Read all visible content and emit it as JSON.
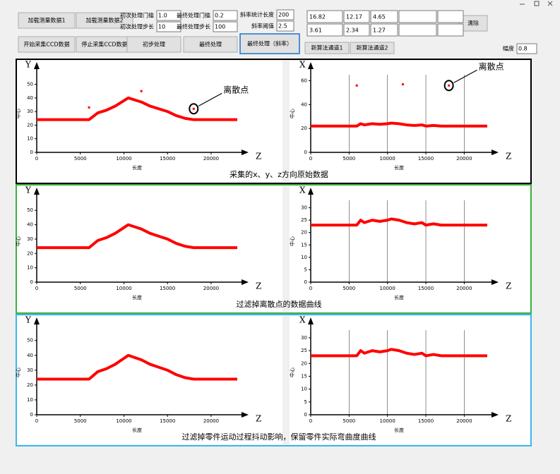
{
  "toolbar": {
    "buttons": [
      "加载测量数据1",
      "加载测量数据2",
      "开始采集CCD数据",
      "停止采集CCD数据",
      "初步处理",
      "最终处理",
      "最终处理（斜率）",
      "清除",
      "新算法通道1",
      "新算法通道2"
    ],
    "fields": [
      {
        "label": "初次处理门槛",
        "value": "1.0"
      },
      {
        "label": "初次处理步长",
        "value": "10"
      },
      {
        "label": "最终处理门槛",
        "value": "0.2"
      },
      {
        "label": "最终处理步长",
        "value": "100"
      },
      {
        "label": "斜率统计长度",
        "value": "200"
      },
      {
        "label": "斜率阈值",
        "value": "2.5"
      },
      {
        "label": "幅度",
        "value": "0.8"
      }
    ],
    "results": [
      [
        "16.82",
        "12.17",
        "4.65"
      ],
      [
        "3.61",
        "2.34",
        "1.27"
      ]
    ]
  },
  "panels": [
    {
      "caption": "采集的x、y、z方向原始数据",
      "color": "#000000"
    },
    {
      "caption": "过滤掉离散点的数据曲线",
      "color": "#3cb43c"
    },
    {
      "caption": "过滤掉零件运动过程抖动影响，保留零件实际弯曲度曲线",
      "color": "#3cb8f0"
    }
  ],
  "chart_data": [
    {
      "type": "line",
      "axis_name": "Y",
      "z_name": "Z",
      "xlabel": "长度",
      "ylabel": "中心",
      "color": "#ff0000",
      "xlim": [
        0,
        23000
      ],
      "ylim": [
        0,
        57
      ],
      "xticks": [
        0,
        5000,
        10000,
        15000,
        20000
      ],
      "yticks": [
        0,
        10,
        20,
        30,
        40,
        50
      ],
      "x": [
        0,
        2000,
        4000,
        6000,
        7000,
        8000,
        9000,
        10000,
        10500,
        11000,
        12000,
        13000,
        14000,
        15000,
        16000,
        17000,
        18000,
        20000,
        23000
      ],
      "values": [
        24,
        24,
        24,
        24,
        29,
        31,
        34,
        38,
        40,
        39,
        37,
        34,
        32,
        30,
        27,
        25,
        24,
        24,
        24
      ],
      "outliers": {
        "x": [
          6000,
          12000,
          18000
        ],
        "values": [
          33,
          45,
          32
        ]
      },
      "annotation": "离散点"
    },
    {
      "type": "line",
      "axis_name": "X",
      "z_name": "Z",
      "xlabel": "长度",
      "ylabel": "中心",
      "color": "#ff0000",
      "xlim": [
        0,
        23000
      ],
      "ylim": [
        0,
        65
      ],
      "xticks": [
        0,
        5000,
        10000,
        15000,
        20000
      ],
      "yticks": [
        0,
        20,
        40,
        60
      ],
      "x": [
        0,
        2000,
        4000,
        6000,
        6500,
        7000,
        8000,
        9000,
        10000,
        10500,
        11500,
        12500,
        13500,
        14500,
        15000,
        16000,
        17000,
        18000,
        20000,
        23000
      ],
      "values": [
        22,
        22,
        22,
        22,
        24,
        23,
        24,
        23.5,
        24,
        24.5,
        24,
        23,
        22.5,
        23,
        22,
        22.5,
        22,
        22,
        22,
        22
      ],
      "outliers": {
        "x": [
          6000,
          12000,
          18000
        ],
        "values": [
          56,
          57,
          56
        ]
      },
      "annotation": "离散点"
    },
    {
      "type": "line",
      "axis_name": "Y",
      "z_name": "Z",
      "xlabel": "长度",
      "ylabel": "中心",
      "color": "#ff0000",
      "xlim": [
        0,
        23000
      ],
      "ylim": [
        0,
        57
      ],
      "xticks": [
        0,
        5000,
        10000,
        15000,
        20000
      ],
      "yticks": [
        0,
        10,
        20,
        30,
        40,
        50
      ],
      "x": [
        0,
        2000,
        4000,
        6000,
        7000,
        8000,
        9000,
        10000,
        10500,
        11000,
        12000,
        13000,
        14000,
        15000,
        16000,
        17000,
        18000,
        20000,
        23000
      ],
      "values": [
        24,
        24,
        24,
        24,
        29,
        31,
        34,
        38,
        40,
        39,
        37,
        34,
        32,
        30,
        27,
        25,
        24,
        24,
        24
      ]
    },
    {
      "type": "line",
      "axis_name": "X",
      "z_name": "Z",
      "xlabel": "长度",
      "ylabel": "中心",
      "color": "#ff0000",
      "xlim": [
        0,
        23000
      ],
      "ylim": [
        0,
        33
      ],
      "xticks": [
        0,
        5000,
        10000,
        15000,
        20000
      ],
      "yticks": [
        0,
        5,
        10,
        15,
        20,
        25,
        30
      ],
      "x": [
        0,
        2000,
        4000,
        6000,
        6500,
        7000,
        8000,
        9000,
        10000,
        10500,
        11500,
        12500,
        13500,
        14500,
        15000,
        16000,
        17000,
        18000,
        20000,
        23000
      ],
      "values": [
        23,
        23,
        23,
        23,
        25,
        24,
        25,
        24.5,
        25,
        25.5,
        25,
        24,
        23.5,
        24,
        23,
        23.5,
        23,
        23,
        23,
        23
      ]
    },
    {
      "type": "line",
      "axis_name": "Y",
      "z_name": "Z",
      "xlabel": "长度",
      "ylabel": "中心",
      "color": "#ff0000",
      "xlim": [
        0,
        23000
      ],
      "ylim": [
        0,
        57
      ],
      "xticks": [
        0,
        5000,
        10000,
        15000,
        20000
      ],
      "yticks": [
        0,
        10,
        20,
        30,
        40,
        50
      ],
      "x": [
        0,
        2000,
        4000,
        6000,
        7000,
        8000,
        9000,
        10000,
        10500,
        11000,
        12000,
        13000,
        14000,
        15000,
        16000,
        17000,
        18000,
        20000,
        23000
      ],
      "values": [
        24,
        24,
        24,
        24,
        29,
        31,
        34,
        38,
        40,
        39,
        37,
        34,
        32,
        30,
        27,
        25,
        24,
        24,
        24
      ]
    },
    {
      "type": "line",
      "axis_name": "X",
      "z_name": "Z",
      "xlabel": "长度",
      "ylabel": "中心",
      "color": "#ff0000",
      "xlim": [
        0,
        23000
      ],
      "ylim": [
        0,
        33
      ],
      "xticks": [
        0,
        5000,
        10000,
        15000,
        20000
      ],
      "yticks": [
        0,
        5,
        10,
        15,
        20,
        25,
        30
      ],
      "x": [
        0,
        2000,
        4000,
        6000,
        6500,
        7000,
        8000,
        9000,
        10000,
        10500,
        11500,
        12500,
        13500,
        14500,
        15000,
        16000,
        17000,
        18000,
        20000,
        23000
      ],
      "values": [
        23,
        23,
        23,
        23,
        25,
        24,
        25,
        24.5,
        25,
        25.5,
        25,
        24,
        23.5,
        24,
        23,
        23.5,
        23,
        23,
        23,
        23
      ]
    }
  ]
}
